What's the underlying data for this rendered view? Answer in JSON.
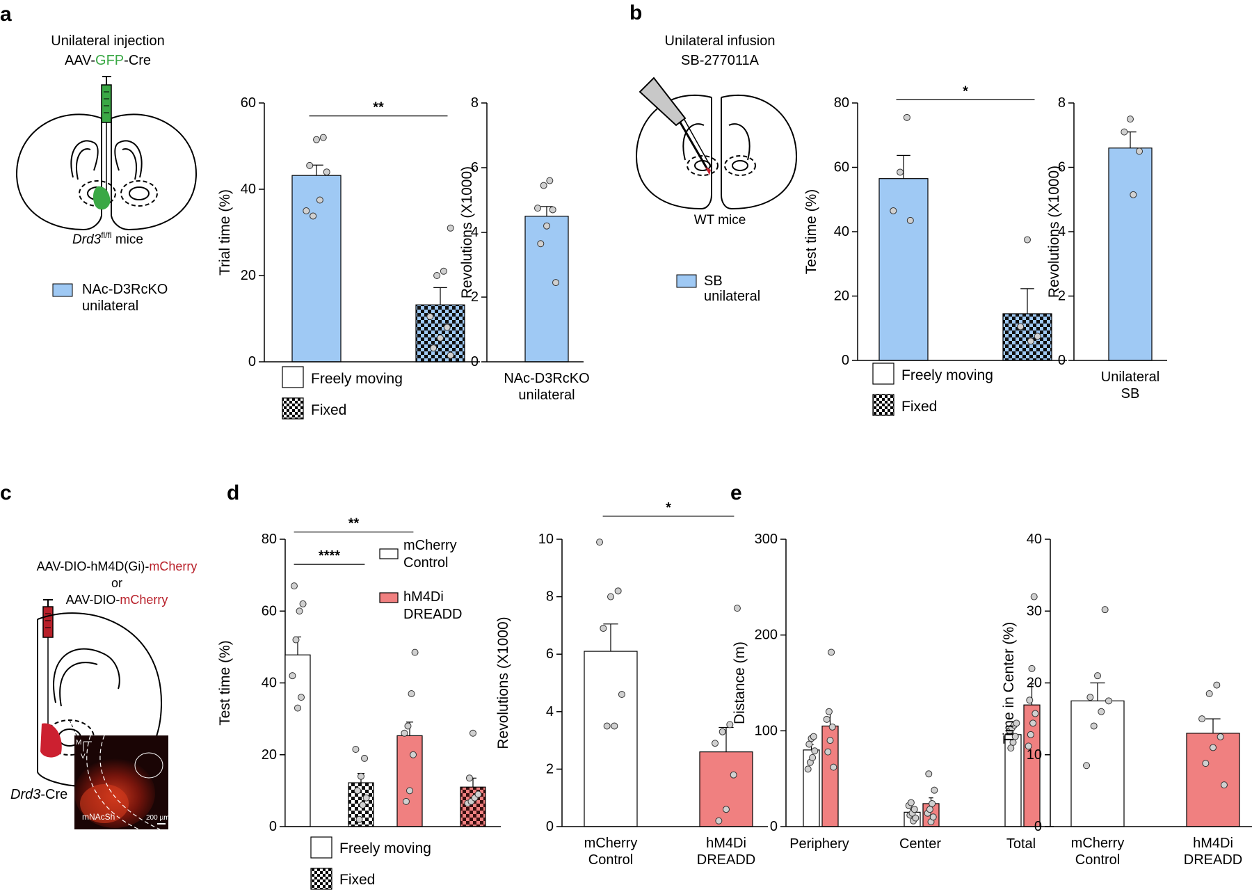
{
  "colors": {
    "blue": "#9fc9f4",
    "pink": "#f08080",
    "red_text": "#b8202a",
    "green": "#3aa845",
    "dark_red": "#cc2030",
    "micro_bg": "#1a0505"
  },
  "panels": {
    "a": {
      "letter": "a",
      "title_line1": "Unilateral injection",
      "title_pre": "AAV-",
      "title_gfp": "GFP",
      "title_post": "-Cre",
      "mice_italic": "Drd3",
      "mice_sup": "fl/fl",
      "mice_rest": " mice",
      "legend_line1": "NAc-D3RcKO",
      "legend_line2": "unilateral"
    },
    "b": {
      "letter": "b",
      "title_line1": "Unilateral infusion",
      "title_line2": "SB-277011A",
      "mice": "WT mice",
      "legend_line1": "SB",
      "legend_line2": "unilateral"
    },
    "c": {
      "letter": "c",
      "virus1_pre": "AAV-DIO-hM4D(Gi)-",
      "virus1_red": "mCherry",
      "or": "or",
      "virus2_pre": "AAV-DIO-",
      "virus2_red": "mCherry",
      "mice_italic": "Drd3",
      "mice_rest": "-Cre",
      "micro_label": "mNAcSh",
      "scale_label": "200 µm",
      "axis_m": "M",
      "axis_v": "V"
    },
    "d": {
      "letter": "d"
    },
    "e": {
      "letter": "e"
    }
  },
  "legends": {
    "freely_moving": "Freely moving",
    "fixed": "Fixed",
    "mcherry_line1": "mCherry",
    "mcherry_line2": "Control",
    "hm4di_line1": "hM4Di",
    "hm4di_line2": "DREADD"
  },
  "chart_data": [
    {
      "id": "a_trial",
      "type": "bar",
      "ylabel": "Trial time (%)",
      "ylim": [
        0,
        60
      ],
      "yticks": [
        0,
        20,
        40,
        60
      ],
      "categories": [
        "Freely moving",
        "Fixed"
      ],
      "values": [
        43.2,
        13.2
      ],
      "sem": [
        2.4,
        4.0
      ],
      "fills": [
        "blue",
        "blue-check"
      ],
      "points": [
        [
          35,
          33.8,
          37.5,
          44,
          45.5,
          51.5,
          52
        ],
        [
          1.5,
          3.2,
          5.5,
          8,
          10.5,
          20,
          21,
          31
        ]
      ],
      "significance": [
        {
          "from": 0,
          "to": 1,
          "label": "**",
          "y": 57
        }
      ]
    },
    {
      "id": "a_rev",
      "type": "bar",
      "ylabel": "Revolutions (X1000)",
      "ylim": [
        0,
        8
      ],
      "yticks": [
        0,
        2,
        4,
        6,
        8
      ],
      "categories": [
        "NAc-D3RcKO unilateral"
      ],
      "values": [
        4.5
      ],
      "sem": [
        0.3
      ],
      "fills": [
        "blue"
      ],
      "points": [
        [
          2.45,
          3.65,
          4.2,
          4.7,
          4.75,
          5.45,
          5.6
        ]
      ],
      "xlabels": [
        [
          "NAc-D3RcKO",
          "unilateral"
        ]
      ]
    },
    {
      "id": "b_test",
      "type": "bar",
      "ylabel": "Test time (%)",
      "ylim": [
        0,
        80
      ],
      "yticks": [
        0,
        20,
        40,
        60,
        80
      ],
      "categories": [
        "Freely moving",
        "Fixed"
      ],
      "values": [
        56.5,
        14.5
      ],
      "sem": [
        7.2,
        7.8
      ],
      "fills": [
        "blue",
        "blue-check"
      ],
      "points": [
        [
          43.5,
          46.5,
          58.5,
          75.5
        ],
        [
          6,
          7.5,
          10.5,
          37.5
        ]
      ],
      "significance": [
        {
          "from": 0,
          "to": 1,
          "label": "*",
          "y": 81
        }
      ]
    },
    {
      "id": "b_rev",
      "type": "bar",
      "ylabel": "Revolutions (X1000)",
      "ylim": [
        0,
        8
      ],
      "yticks": [
        0,
        2,
        4,
        6,
        8
      ],
      "categories": [
        "Unilateral SB"
      ],
      "values": [
        6.6
      ],
      "sem": [
        0.5
      ],
      "fills": [
        "blue"
      ],
      "points": [
        [
          5.15,
          6.5,
          7.1,
          7.5
        ]
      ],
      "xlabels": [
        [
          "Unilateral",
          "SB"
        ]
      ]
    },
    {
      "id": "d_test",
      "type": "bar",
      "ylabel": "Test time (%)",
      "ylim": [
        0,
        80
      ],
      "yticks": [
        0,
        20,
        40,
        60,
        80
      ],
      "categories": [
        "mCherry Freely moving",
        "mCherry Fixed",
        "hM4Di Freely moving",
        "hM4Di Fixed"
      ],
      "values": [
        47.8,
        12.2,
        25.3,
        11.0
      ],
      "sem": [
        5.0,
        2.6,
        3.8,
        2.5
      ],
      "fills": [
        "white",
        "white-check",
        "pink",
        "pink-check"
      ],
      "points": [
        [
          33,
          36,
          42,
          52,
          60,
          62,
          67
        ],
        [
          2,
          6,
          8,
          10,
          14,
          19,
          21.5
        ],
        [
          7,
          10,
          20,
          26,
          28,
          37,
          48.5
        ],
        [
          6.5,
          7,
          8,
          9,
          13.5,
          26
        ]
      ],
      "significance": [
        {
          "from": 0,
          "to": 1,
          "label": "****",
          "y": 73
        },
        {
          "from": 0,
          "to": 2,
          "label": "**",
          "y": 82
        }
      ]
    },
    {
      "id": "d_rev",
      "type": "bar",
      "ylabel": "Revolutions (X1000)",
      "ylim": [
        0,
        10
      ],
      "yticks": [
        0,
        2,
        4,
        6,
        8,
        10
      ],
      "categories": [
        "mCherry Control",
        "hM4Di DREADD"
      ],
      "values": [
        6.1,
        2.6
      ],
      "sem": [
        0.95,
        0.85
      ],
      "fills": [
        "white",
        "pink"
      ],
      "points": [
        [
          3.5,
          3.5,
          4.6,
          6.9,
          8.0,
          8.2,
          9.9
        ],
        [
          0.2,
          0.6,
          1.8,
          2.9,
          3.3,
          3.55,
          7.6
        ]
      ],
      "significance": [
        {
          "from": 0,
          "to": 1,
          "label": "*",
          "y": 10.8
        }
      ],
      "xlabels": [
        [
          "mCherry",
          "Control"
        ],
        [
          "hM4Di",
          "DREADD"
        ]
      ]
    },
    {
      "id": "e_dist",
      "type": "bar",
      "ylabel": "Distance (m)",
      "ylim": [
        0,
        300
      ],
      "yticks": [
        0,
        100,
        200,
        300
      ],
      "categories": [
        "Periphery",
        "Center",
        "Total"
      ],
      "series": [
        {
          "name": "mCherry Control",
          "fill": "white",
          "values": [
            80,
            15,
            96
          ],
          "sem": [
            6,
            3,
            6
          ],
          "points": [
            [
              60,
              67,
              72,
              79,
              86,
              92,
              94
            ],
            [
              6,
              9,
              12,
              14,
              18,
              22,
              25
            ],
            [
              82,
              88,
              94,
              100,
              103,
              106,
              108
            ]
          ]
        },
        {
          "name": "hM4Di DREADD",
          "fill": "pink",
          "values": [
            105,
            24,
            127
          ],
          "sem": [
            15,
            6,
            22
          ],
          "points": [
            [
              62,
              78,
              90,
              104,
              112,
              120,
              182
            ],
            [
              5,
              10,
              14,
              18,
              24,
              38,
              55
            ],
            [
              84,
              96,
              108,
              118,
              132,
              165,
              240
            ]
          ]
        }
      ],
      "xlabels": [
        [
          "Periphery"
        ],
        [
          "Center"
        ],
        [
          "Total"
        ]
      ]
    },
    {
      "id": "e_center",
      "type": "bar",
      "ylabel": "Time in Center (%)",
      "ylim": [
        0,
        40
      ],
      "yticks": [
        0,
        10,
        20,
        30,
        40
      ],
      "categories": [
        "mCherry Control",
        "hM4Di DREADD"
      ],
      "values": [
        17.5,
        13.0
      ],
      "sem": [
        2.5,
        2.0
      ],
      "fills": [
        "white",
        "pink"
      ],
      "points": [
        [
          8.5,
          14,
          16,
          17.5,
          18,
          21,
          30.2
        ],
        [
          5.8,
          8.8,
          11,
          12.5,
          15,
          18.5,
          19.7
        ]
      ],
      "xlabels": [
        [
          "mCherry",
          "Control"
        ],
        [
          "hM4Di",
          "DREADD"
        ]
      ]
    }
  ]
}
